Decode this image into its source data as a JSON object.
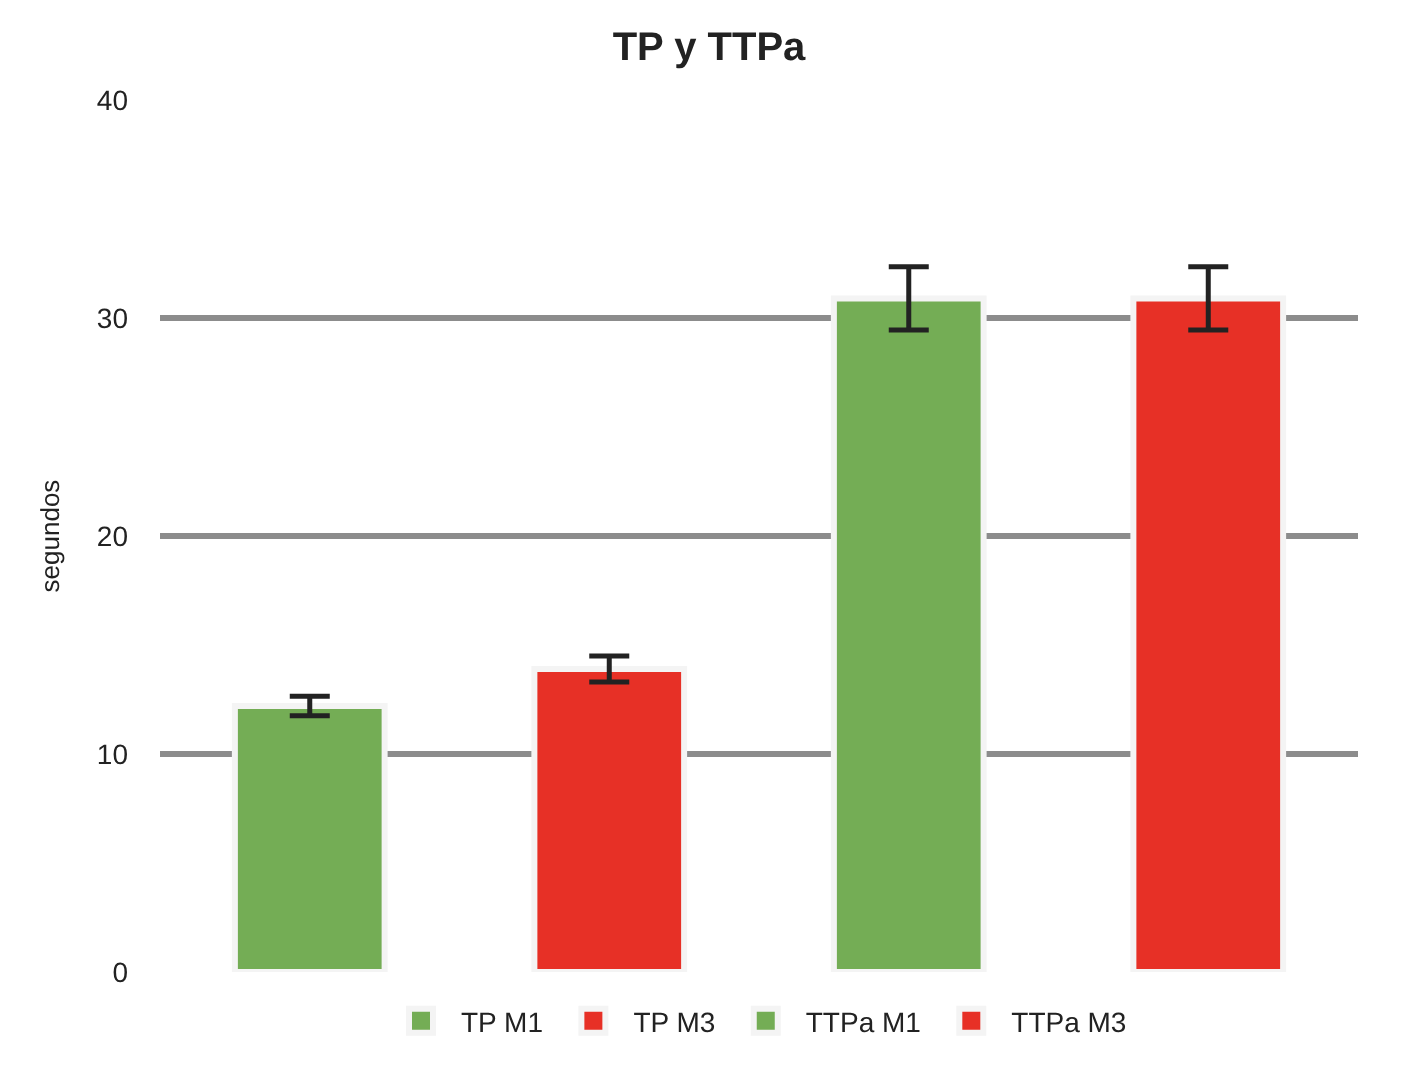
{
  "chart_data": {
    "type": "bar",
    "title": "TP y TTPa",
    "ylabel": "segundos",
    "categories": [
      null,
      null,
      null,
      null
    ],
    "series": [
      {
        "name": "TP M1",
        "color": "#74ad55",
        "values": [
          12.2,
          null,
          null,
          null
        ],
        "errors": [
          0.45,
          null,
          null,
          null
        ]
      },
      {
        "name": "TP M3",
        "color": "#e73026",
        "values": [
          null,
          13.9,
          null,
          null
        ],
        "errors": [
          null,
          0.6,
          null,
          null
        ]
      },
      {
        "name": "TTPa M1",
        "color": "#74ad55",
        "values": [
          null,
          null,
          30.9,
          null
        ],
        "errors": [
          null,
          null,
          1.45,
          null
        ]
      },
      {
        "name": "TTPa M3",
        "color": "#e73026",
        "values": [
          null,
          null,
          null,
          30.9
        ],
        "errors": [
          null,
          null,
          null,
          1.45
        ]
      }
    ],
    "ylim": [
      0,
      40
    ],
    "yticks": [
      0,
      10,
      20,
      30,
      40
    ],
    "grid": "y",
    "legend": "bottom"
  }
}
